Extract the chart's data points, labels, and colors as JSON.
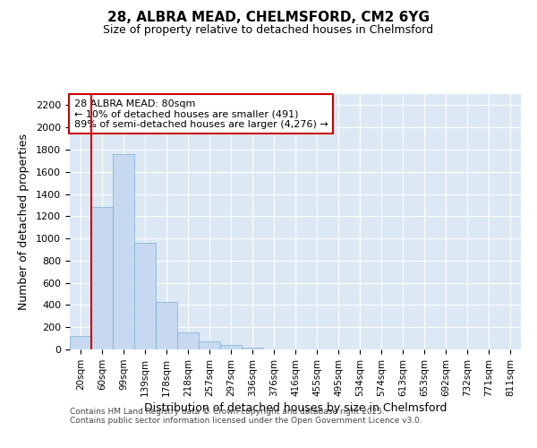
{
  "title1": "28, ALBRA MEAD, CHELMSFORD, CM2 6YG",
  "title2": "Size of property relative to detached houses in Chelmsford",
  "xlabel": "Distribution of detached houses by size in Chelmsford",
  "ylabel": "Number of detached properties",
  "categories": [
    "20sqm",
    "60sqm",
    "99sqm",
    "139sqm",
    "178sqm",
    "218sqm",
    "257sqm",
    "297sqm",
    "336sqm",
    "376sqm",
    "416sqm",
    "455sqm",
    "495sqm",
    "534sqm",
    "574sqm",
    "613sqm",
    "653sqm",
    "692sqm",
    "732sqm",
    "771sqm",
    "811sqm"
  ],
  "values": [
    120,
    1280,
    1760,
    960,
    430,
    150,
    75,
    40,
    20,
    0,
    0,
    0,
    0,
    0,
    0,
    0,
    0,
    0,
    0,
    0,
    0
  ],
  "bar_color": "#c6d9f0",
  "bar_edge_color": "#7bafd4",
  "bg_color": "#dde8f5",
  "grid_color": "#ffffff",
  "annotation_box_text": "28 ALBRA MEAD: 80sqm\n← 10% of detached houses are smaller (491)\n89% of semi-detached houses are larger (4,276) →",
  "annotation_box_color": "#ffffff",
  "annotation_box_edge_color": "#cc0000",
  "red_line_x": 1.0,
  "ylim": [
    0,
    2300
  ],
  "yticks": [
    0,
    200,
    400,
    600,
    800,
    1000,
    1200,
    1400,
    1600,
    1800,
    2000,
    2200
  ],
  "footnote1": "Contains HM Land Registry data © Crown copyright and database right 2025.",
  "footnote2": "Contains public sector information licensed under the Open Government Licence v3.0.",
  "fig_bg": "#ffffff"
}
